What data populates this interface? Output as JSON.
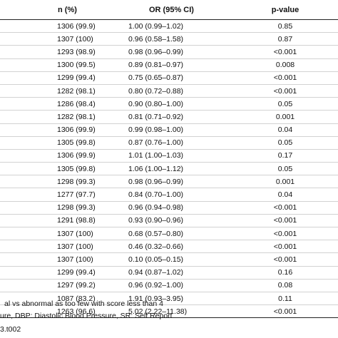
{
  "table": {
    "headers": {
      "n": "n (%)",
      "or": "OR (95% CI)",
      "p": "p-value"
    },
    "rows": [
      {
        "n": "1306 (99.9)",
        "or": "1.00 (0.99–1.02)",
        "p": "0.85"
      },
      {
        "n": "1307 (100)",
        "or": "0.96 (0.58–1.58)",
        "p": "0.87"
      },
      {
        "n": "1293 (98.9)",
        "or": "0.98 (0.96–0.99)",
        "p": "<0.001"
      },
      {
        "n": "1300 (99.5)",
        "or": "0.89 (0.81–0.97)",
        "p": "0.008"
      },
      {
        "n": "1299 (99.4)",
        "or": "0.75 (0.65–0.87)",
        "p": "<0.001"
      },
      {
        "n": "1282 (98.1)",
        "or": "0.80 (0.72–0.88)",
        "p": "<0.001"
      },
      {
        "n": "1286 (98.4)",
        "or": "0.90 (0.80–1.00)",
        "p": "0.05"
      },
      {
        "n": "1282 (98.1)",
        "or": "0.81 (0.71–0.92)",
        "p": "0.001"
      },
      {
        "n": "1306 (99.9)",
        "or": "0.99 (0.98–1.00)",
        "p": "0.04"
      },
      {
        "n": "1305 (99.8)",
        "or": "0.87 (0.76–1.00)",
        "p": "0.05"
      },
      {
        "n": "1306 (99.9)",
        "or": "1.01 (1.00–1.03)",
        "p": "0.17"
      },
      {
        "n": "1305 (99.8)",
        "or": "1.06 (1.00–1.12)",
        "p": "0.05"
      },
      {
        "n": "1298 (99.3)",
        "or": "0.98 (0.96–0.99)",
        "p": "0.001"
      },
      {
        "n": "1277 (97.7)",
        "or": "0.84 (0.70–1.00)",
        "p": "0.04"
      },
      {
        "n": "1298 (99.3)",
        "or": "0.96 (0.94–0.98)",
        "p": "<0.001"
      },
      {
        "n": "1291 (98.8)",
        "or": "0.93 (0.90–0.96)",
        "p": "<0.001"
      },
      {
        "n": "1307 (100)",
        "or": "0.68 (0.57–0.80)",
        "p": "<0.001"
      },
      {
        "n": "1307 (100)",
        "or": "0.46 (0.32–0.66)",
        "p": "<0.001"
      },
      {
        "n": "1307 (100)",
        "or": "0.10 (0.05–0.15)",
        "p": "<0.001"
      },
      {
        "n": "1299 (99.4)",
        "or": "0.94 (0.87–1.02)",
        "p": "0.16"
      },
      {
        "n": "1297 (99.2)",
        "or": "0.96 (0.92–1.00)",
        "p": "0.08"
      },
      {
        "n": "1087 (83.2)",
        "or": "1.91 (0.93–3.95)",
        "p": "0.11"
      },
      {
        "n": "1263 (96.6)",
        "or": "5.02 (2.22–11.38)",
        "p": "<0.001"
      }
    ]
  },
  "footnotes": {
    "line1": "al vs abnormal as too few with score less than 4",
    "line2": "ure, DBP: Diastolic Blood Pressure, SR: Self Report",
    "table_id": "3.t002"
  }
}
